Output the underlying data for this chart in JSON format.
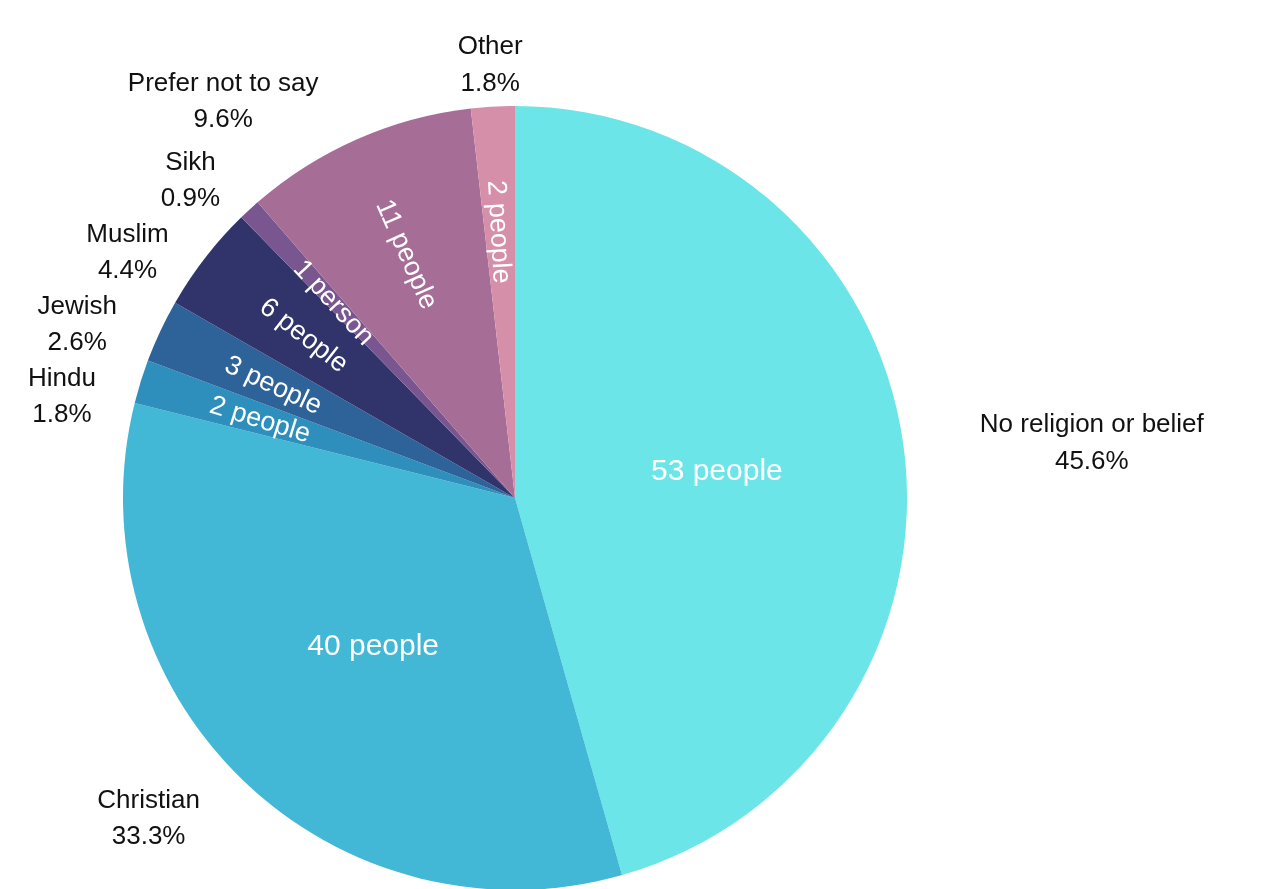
{
  "chart_data": {
    "type": "pie",
    "categories": [
      "No religion or belief",
      "Christian",
      "Hindu",
      "Jewish",
      "Muslim",
      "Sikh",
      "Prefer not to say",
      "Other"
    ],
    "values": [
      45.6,
      33.3,
      1.8,
      2.6,
      4.4,
      0.9,
      9.6,
      1.8
    ],
    "value_labels": [
      "45.6%",
      "33.3%",
      "1.8%",
      "2.6%",
      "4.4%",
      "0.9%",
      "9.6%",
      "1.8%"
    ],
    "colors": [
      "#6ce5e8",
      "#42b7d6",
      "#2e8fbd",
      "#2e6399",
      "#31346b",
      "#7a5690",
      "#a66d96",
      "#d68fa8"
    ],
    "annotations": [
      "53 people",
      "40 people",
      "2 people",
      "3 people",
      "6 people",
      "1 person",
      "11 people",
      "2 people"
    ]
  }
}
